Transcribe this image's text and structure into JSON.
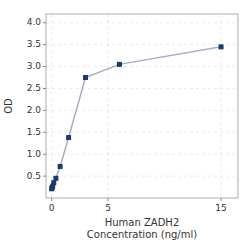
{
  "chart_data": {
    "type": "line",
    "xlabel": "Human ZADH2\nConcentration (ng/ml)",
    "ylabel": "OD",
    "x": [
      0.0,
      0.047,
      0.094,
      0.188,
      0.375,
      0.75,
      1.5,
      3.0,
      6.0,
      15.0
    ],
    "values": [
      0.21,
      0.24,
      0.27,
      0.35,
      0.45,
      0.72,
      1.38,
      2.75,
      3.05,
      3.45
    ],
    "color": "#1a3a6b",
    "marker": "square",
    "xlim": [
      -0.5,
      16.5
    ],
    "ylim": [
      0.0,
      4.2
    ],
    "xticks": [
      0,
      5,
      15
    ],
    "yticks": [
      0.5,
      {
        "value": 1.0,
        "label": "1.0"
      },
      1.5,
      {
        "value": 2.0,
        "label": "2.0"
      },
      2.5,
      {
        "value": 3.0,
        "label": "3.0"
      },
      3.5,
      {
        "value": 4.0,
        "label": "4.0"
      }
    ],
    "grid": true
  }
}
